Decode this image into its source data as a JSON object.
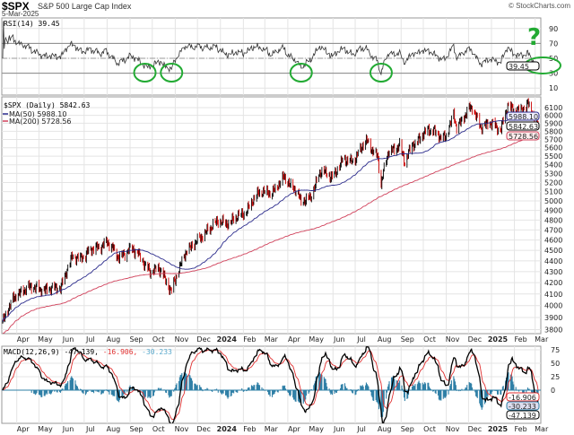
{
  "header": {
    "symbol": "$SPX",
    "name": "S&P 500 Large Cap Index",
    "date": "5-Mar-2025",
    "copyright": "© StockCharts.com"
  },
  "colors": {
    "price_up": "#000000",
    "price_down": "#cc0000",
    "ma50": "#2b2b8c",
    "ma200": "#d0405a",
    "rsi_line": "#333333",
    "macd_line": "#000000",
    "signal_line": "#e03030",
    "histogram": "#2e7fa6",
    "annotation": "#22aa33",
    "grid": "#e4e4e4"
  },
  "annotations": {
    "question_mark": "?",
    "circled_points": [
      "2023-09-21",
      "2023-10-27",
      "2024-04-19",
      "2024-08-05",
      "2025-03-04"
    ]
  },
  "xaxis": {
    "start": "2023-03-13",
    "end": "2025-03-05",
    "months": [
      {
        "date": "2023-04-01",
        "label": "Apr"
      },
      {
        "date": "2023-05-01",
        "label": "May"
      },
      {
        "date": "2023-06-01",
        "label": "Jun"
      },
      {
        "date": "2023-07-01",
        "label": "Jul"
      },
      {
        "date": "2023-08-01",
        "label": "Aug"
      },
      {
        "date": "2023-09-01",
        "label": "Sep"
      },
      {
        "date": "2023-10-01",
        "label": "Oct"
      },
      {
        "date": "2023-11-01",
        "label": "Nov"
      },
      {
        "date": "2023-12-01",
        "label": "Dec"
      },
      {
        "date": "2024-01-01",
        "label": "2024",
        "bold": true
      },
      {
        "date": "2024-02-01",
        "label": "Feb"
      },
      {
        "date": "2024-03-01",
        "label": "Mar"
      },
      {
        "date": "2024-04-01",
        "label": "Apr"
      },
      {
        "date": "2024-05-01",
        "label": "May"
      },
      {
        "date": "2024-06-01",
        "label": "Jun"
      },
      {
        "date": "2024-07-01",
        "label": "Jul"
      },
      {
        "date": "2024-08-01",
        "label": "Aug"
      },
      {
        "date": "2024-09-01",
        "label": "Sep"
      },
      {
        "date": "2024-10-01",
        "label": "Oct"
      },
      {
        "date": "2024-11-01",
        "label": "Nov"
      },
      {
        "date": "2024-12-01",
        "label": "Dec"
      },
      {
        "date": "2025-01-01",
        "label": "2025",
        "bold": true
      },
      {
        "date": "2025-02-01",
        "label": "Feb"
      },
      {
        "date": "2025-03-01",
        "label": "Mar"
      }
    ]
  },
  "chart_data": [
    {
      "type": "line",
      "panel": "rsi",
      "title": "RSI(14) 39.45",
      "last_value": "39.45",
      "yticks": [
        10,
        30,
        50,
        70,
        90
      ],
      "ylim": [
        0,
        105
      ],
      "reference_lines": [
        30,
        50,
        70
      ],
      "grid": true
    },
    {
      "type": "ohlc",
      "panel": "price",
      "title": "$SPX (Daily) 5842.63",
      "scale": "log",
      "ylim": [
        3780,
        6250
      ],
      "yticks": [
        3800,
        3900,
        4000,
        4100,
        4200,
        4300,
        4400,
        4500,
        4600,
        4700,
        4800,
        4900,
        5000,
        5100,
        5200,
        5300,
        5400,
        5500,
        5600,
        5700,
        5800,
        5900,
        6000,
        6100
      ],
      "legend": [
        {
          "name": "MA(50) 5988.10",
          "color": "#2b2b8c"
        },
        {
          "name": "MA(200) 5728.56",
          "color": "#d0405a"
        }
      ],
      "last_labels": {
        "ma50": "5988.10",
        "close": "5842.63",
        "ma200": "5728.56"
      },
      "series": {
        "x": [
          "2023-03-13",
          "2023-03-31",
          "2023-04-14",
          "2023-04-28",
          "2023-05-12",
          "2023-05-31",
          "2023-06-15",
          "2023-06-30",
          "2023-07-14",
          "2023-07-31",
          "2023-08-15",
          "2023-08-31",
          "2023-09-15",
          "2023-09-29",
          "2023-10-13",
          "2023-10-27",
          "2023-11-15",
          "2023-11-30",
          "2023-12-15",
          "2023-12-29",
          "2024-01-12",
          "2024-01-31",
          "2024-02-15",
          "2024-02-29",
          "2024-03-15",
          "2024-03-28",
          "2024-04-12",
          "2024-04-19",
          "2024-04-30",
          "2024-05-15",
          "2024-05-31",
          "2024-06-14",
          "2024-06-28",
          "2024-07-16",
          "2024-07-31",
          "2024-08-05",
          "2024-08-15",
          "2024-08-30",
          "2024-09-06",
          "2024-09-16",
          "2024-09-30",
          "2024-10-15",
          "2024-10-31",
          "2024-11-11",
          "2024-11-15",
          "2024-11-29",
          "2024-12-06",
          "2024-12-18",
          "2024-12-31",
          "2025-01-13",
          "2025-01-23",
          "2025-01-31",
          "2025-02-19",
          "2025-02-28",
          "2025-03-05"
        ],
        "close": [
          3855,
          4109,
          4137,
          4169,
          4124,
          4180,
          4425,
          4450,
          4505,
          4589,
          4437,
          4508,
          4450,
          4288,
          4327,
          4117,
          4502,
          4568,
          4719,
          4770,
          4784,
          4846,
          5030,
          5096,
          5117,
          5254,
          5123,
          4967,
          5036,
          5308,
          5278,
          5432,
          5460,
          5667,
          5522,
          5186,
          5543,
          5648,
          5408,
          5633,
          5762,
          5815,
          5705,
          6001,
          5870,
          6032,
          6090,
          5872,
          5882,
          5836,
          6119,
          6040,
          6144,
          5955,
          5842.63
        ]
      }
    },
    {
      "type": "line",
      "panel": "macd",
      "title": "MACD(12,26,9)",
      "values_label": [
        "-47.139",
        "-16.906",
        "-30.233"
      ],
      "series": [
        {
          "name": "MACD",
          "last": -47.139,
          "color": "#000000"
        },
        {
          "name": "Signal",
          "last": -16.906,
          "color": "#e03030"
        },
        {
          "name": "Histogram",
          "last": -30.233,
          "color": "#2e7fa6"
        }
      ],
      "yticks": [
        75,
        50,
        25,
        0
      ],
      "ylim": [
        -58,
        82
      ],
      "grid": true
    }
  ]
}
